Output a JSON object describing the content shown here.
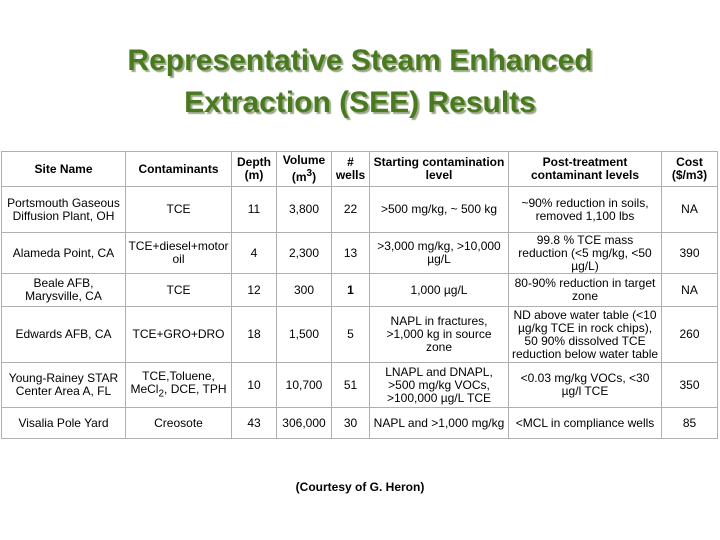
{
  "title": {
    "line1": "Representative Steam Enhanced",
    "line2": "Extraction (SEE) Results"
  },
  "table": {
    "headers": {
      "site": "Site Name",
      "contaminants": "Contaminants",
      "depth": "Depth (m)",
      "volume_pre": "Volume (m",
      "volume_sup": "3",
      "volume_post": ")",
      "wells": "# wells",
      "starting": "Starting contamination level",
      "post": "Post-treatment contaminant levels",
      "cost": "Cost ($/m3)"
    },
    "rows": [
      {
        "site": "Portsmouth Gaseous Diffusion Plant, OH",
        "contaminants": "TCE",
        "depth": "11",
        "volume": "3,800",
        "wells": "22",
        "starting": ">500 mg/kg, ~ 500 kg",
        "post": "~90% reduction in soils, removed 1,100 lbs",
        "cost": "NA"
      },
      {
        "site": "Alameda Point, CA",
        "contaminants": "TCE+diesel+motor oil",
        "depth": "4",
        "volume": "2,300",
        "wells": "13",
        "starting": ">3,000 mg/kg, >10,000 µg/L",
        "post": "99.8 % TCE mass reduction (<5 mg/kg, <50 µg/L)",
        "cost": "390"
      },
      {
        "site": "Beale AFB, Marysville, CA",
        "contaminants": "TCE",
        "depth": "12",
        "volume": "300",
        "wells": "1",
        "starting": "1,000 µg/L",
        "post": "80-90% reduction in target zone",
        "cost": "NA"
      },
      {
        "site": "Edwards AFB, CA",
        "contaminants": "TCE+GRO+DRO",
        "depth": "18",
        "volume": "1,500",
        "wells": "5",
        "starting": "NAPL in fractures, >1,000 kg in source zone",
        "post": "ND above water table (<10 µg/kg TCE in rock chips), 50 90% dissolved TCE reduction below water table",
        "cost": "260"
      },
      {
        "site": "Young-Rainey STAR Center Area A, FL",
        "contaminants_pre": "TCE,Toluene, MeCl",
        "contaminants_sub": "2",
        "contaminants_post": ", DCE, TPH",
        "depth": "10",
        "volume": "10,700",
        "wells": "51",
        "starting": "LNAPL and DNAPL, >500 mg/kg VOCs, >100,000 µg/L TCE",
        "post": "<0.03 mg/kg VOCs, <30 µg/l TCE",
        "cost": "350"
      },
      {
        "site": "Visalia Pole Yard",
        "contaminants": "Creosote",
        "depth": "43",
        "volume": "306,000",
        "wells": "30",
        "starting": "NAPL and >1,000 mg/kg",
        "post": "<MCL in compliance wells",
        "cost": "85"
      }
    ]
  },
  "caption": "(Courtesy of G. Heron)"
}
